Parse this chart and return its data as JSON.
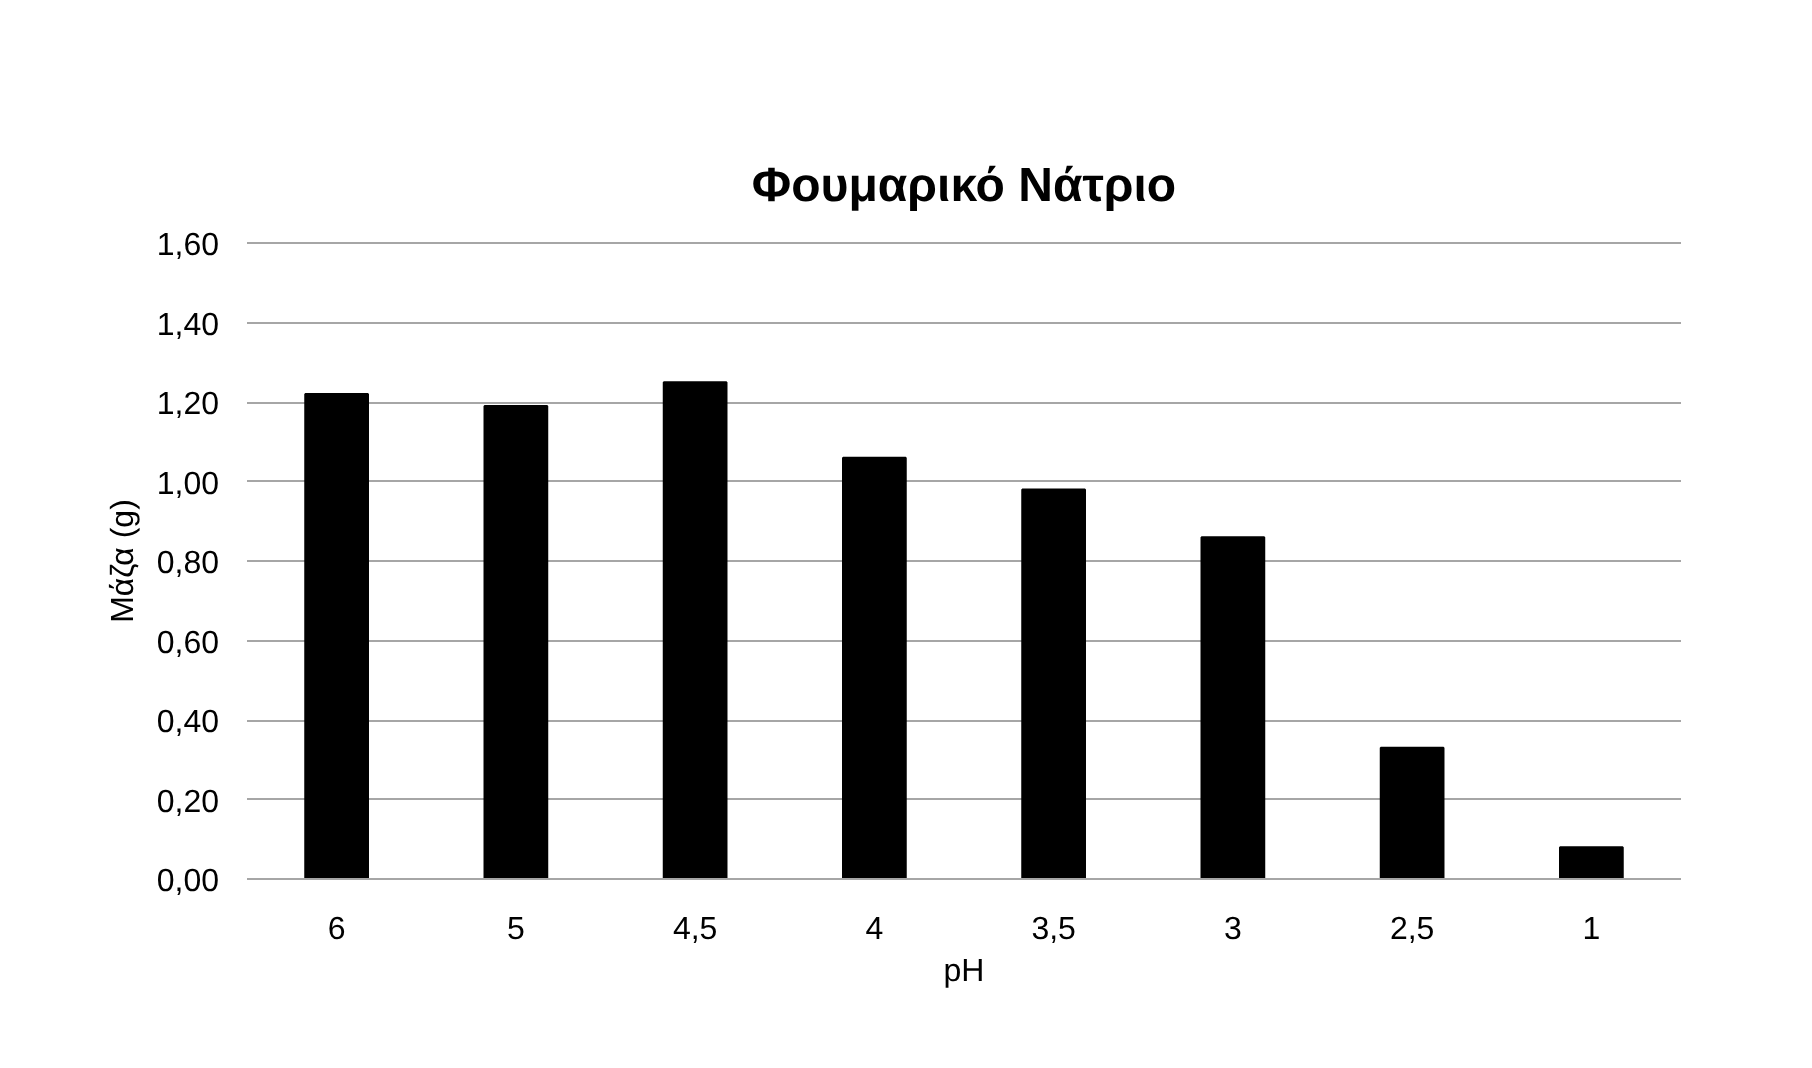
{
  "chart_data": {
    "type": "bar",
    "title": "Φουμαρικό Νάτριο",
    "xlabel": "pH",
    "ylabel": "Μάζα (g)",
    "categories": [
      "6",
      "5",
      "4,5",
      "4",
      "3,5",
      "3",
      "2,5",
      "1"
    ],
    "values": [
      1.22,
      1.19,
      1.25,
      1.06,
      0.98,
      0.86,
      0.33,
      0.08
    ],
    "color": "#000000",
    "ylim": [
      0,
      1.6
    ],
    "yticks": [
      {
        "value": 0,
        "label": "0,00"
      },
      {
        "value": 0.2,
        "label": "0,20"
      },
      {
        "value": 0.4,
        "label": "0,40"
      },
      {
        "value": 0.6,
        "label": "0,60"
      },
      {
        "value": 0.8,
        "label": "0,80"
      },
      {
        "value": 1.0,
        "label": "1,00"
      },
      {
        "value": 1.2,
        "label": "1,20"
      },
      {
        "value": 1.4,
        "label": "1,40"
      },
      {
        "value": 1.6,
        "label": "1,60"
      }
    ],
    "grid": "y"
  }
}
